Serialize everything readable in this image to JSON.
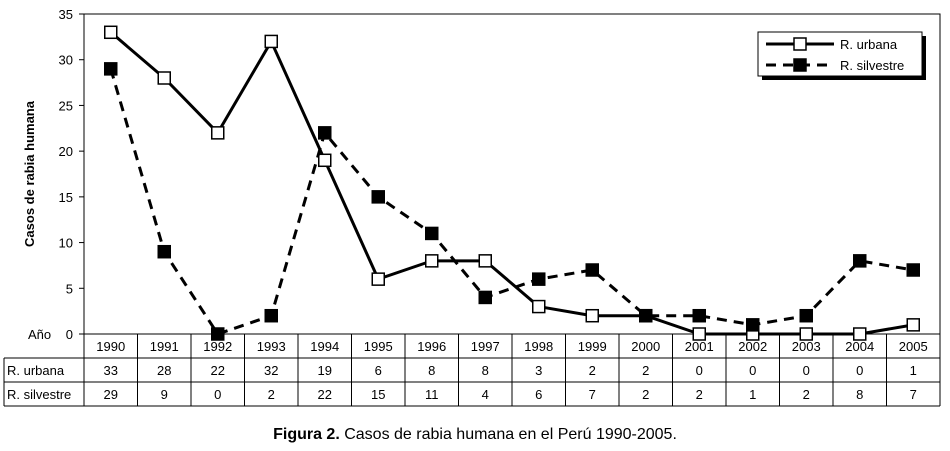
{
  "chart_data": {
    "type": "line",
    "ylabel": "Casos de rabia humana",
    "xlabel": "Año",
    "ylim": [
      0,
      35
    ],
    "yticks": [
      "0",
      "5",
      "10",
      "15",
      "20",
      "25",
      "30",
      "35"
    ],
    "categories": [
      "1990",
      "1991",
      "1992",
      "1993",
      "1994",
      "1995",
      "1996",
      "1997",
      "1998",
      "1999",
      "2000",
      "2001",
      "2002",
      "2003",
      "2004",
      "2005"
    ],
    "series": [
      {
        "name": "R. urbana",
        "values": [
          33,
          28,
          22,
          32,
          19,
          6,
          8,
          8,
          3,
          2,
          2,
          0,
          0,
          0,
          0,
          1
        ],
        "style": "solid",
        "marker": "open-square"
      },
      {
        "name": "R. silvestre",
        "values": [
          29,
          9,
          0,
          2,
          22,
          15,
          11,
          4,
          6,
          7,
          2,
          2,
          1,
          2,
          8,
          7
        ],
        "style": "dashed",
        "marker": "filled-square"
      }
    ],
    "legend_position": "top-right",
    "grid": false
  },
  "caption": {
    "label": "Figura 2.",
    "text": " Casos de rabia humana en el Perú 1990-2005."
  }
}
